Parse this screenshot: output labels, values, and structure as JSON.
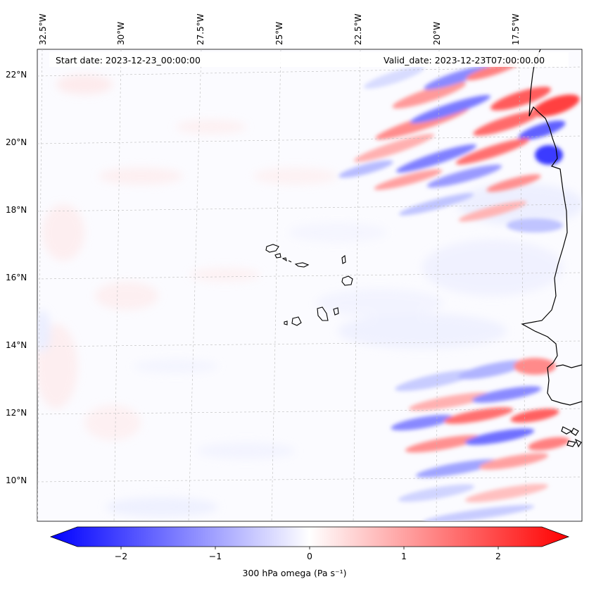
{
  "map": {
    "start_label": "Start date: 2023-12-23_00:00:00",
    "valid_label": "Valid_date: 2023-12-23T07:00:00.00",
    "variable": "300 hPa omega",
    "units": "Pa s⁻¹",
    "lat_ticks": [
      "22°N",
      "20°N",
      "18°N",
      "16°N",
      "14°N",
      "12°N",
      "10°N"
    ],
    "lon_ticks": [
      "32.5°W",
      "30°W",
      "27.5°W",
      "25°W",
      "22.5°W",
      "20°W",
      "17.5°W"
    ],
    "regions": [
      "Cape Verde Islands",
      "West African coast"
    ]
  },
  "colorbar": {
    "ticks": [
      "−2",
      "−1",
      "0",
      "1",
      "2"
    ],
    "title": "300 hPa omega (Pa s⁻¹)",
    "min": -2.7,
    "max": 2.7,
    "colors": {
      "negative": "#0000ff",
      "zero": "#ffffff",
      "positive": "#ff0000"
    }
  }
}
